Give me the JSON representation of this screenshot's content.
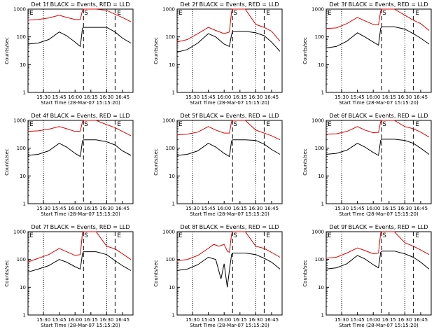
{
  "panel_titles": [
    "Det 1f BLACK = Events, RED = LLD",
    "Det 2f BLACK = Events, RED = LLD",
    "Det 3f BLACK = Events, RED = LLD",
    "Det 4f BLACK = Events, RED = LLD",
    "Det 5f BLACK = Events, RED = LLD",
    "Det 6f BLACK = Events, RED = LLD",
    "Det 7f BLACK = Events, RED = LLD",
    "Det 8f BLACK = Events, RED = LLD",
    "Det 9f BLACK = Events, RED = LLD"
  ],
  "ylabel": "Counts/sec",
  "xlabel": "Start Time (28-Mar-07 15:15:20)",
  "x_ticks": [
    "15:30",
    "15:45",
    "16:00",
    "16:15",
    "16:30",
    "16:45"
  ],
  "y_ticks": [
    "1",
    "10",
    "100",
    "1000"
  ],
  "markers": {
    "start": "S",
    "end": "E"
  },
  "colors": {
    "events": "#000000",
    "lld": "#e00000"
  },
  "chart_data": {
    "type": "line",
    "layout": "3x3 small multiples",
    "xlim": [
      "15:15:20",
      "16:55"
    ],
    "ylim": [
      1,
      1000
    ],
    "yscale": "log",
    "series_names": [
      "Events",
      "LLD"
    ],
    "vertical_lines": {
      "dotted": [
        "15:30",
        "16:30"
      ],
      "dashed": [
        "16:08",
        "16:38"
      ]
    },
    "panels": [
      {
        "detector": "1f",
        "events": [
          [
            "15:15",
            55
          ],
          [
            "15:25",
            60
          ],
          [
            "15:35",
            80
          ],
          [
            "15:45",
            150
          ],
          [
            "15:52",
            110
          ],
          [
            "16:00",
            65
          ],
          [
            "16:05",
            45
          ],
          [
            "16:07",
            200
          ],
          [
            "16:08",
            220
          ],
          [
            "16:20",
            220
          ],
          [
            "16:30",
            220
          ],
          [
            "16:38",
            150
          ],
          [
            "16:45",
            90
          ],
          [
            "16:53",
            60
          ]
        ],
        "lld": [
          [
            "15:15",
            400
          ],
          [
            "15:25",
            420
          ],
          [
            "15:35",
            480
          ],
          [
            "15:45",
            600
          ],
          [
            "15:52",
            500
          ],
          [
            "16:00",
            420
          ],
          [
            "16:05",
            420
          ],
          [
            "16:07",
            900
          ],
          [
            "16:08",
            1000
          ],
          [
            "16:20",
            1000
          ],
          [
            "16:30",
            900
          ],
          [
            "16:38",
            650
          ],
          [
            "16:45",
            500
          ],
          [
            "16:53",
            350
          ]
        ]
      },
      {
        "detector": "2f",
        "events": [
          [
            "15:15",
            28
          ],
          [
            "15:25",
            35
          ],
          [
            "15:35",
            60
          ],
          [
            "15:45",
            130
          ],
          [
            "15:52",
            100
          ],
          [
            "16:00",
            55
          ],
          [
            "16:05",
            45
          ],
          [
            "16:07",
            120
          ],
          [
            "16:08",
            160
          ],
          [
            "16:20",
            160
          ],
          [
            "16:30",
            140
          ],
          [
            "16:38",
            110
          ],
          [
            "16:45",
            65
          ],
          [
            "16:53",
            30
          ]
        ],
        "lld": [
          [
            "15:15",
            65
          ],
          [
            "15:25",
            80
          ],
          [
            "15:35",
            130
          ],
          [
            "15:45",
            220
          ],
          [
            "15:52",
            170
          ],
          [
            "16:00",
            130
          ],
          [
            "16:05",
            150
          ],
          [
            "16:07",
            800
          ],
          [
            "16:08",
            1000
          ],
          [
            "16:20",
            1000
          ],
          [
            "16:30",
            280
          ],
          [
            "16:38",
            220
          ],
          [
            "16:45",
            160
          ],
          [
            "16:53",
            70
          ]
        ]
      },
      {
        "detector": "3f",
        "events": [
          [
            "15:15",
            40
          ],
          [
            "15:25",
            45
          ],
          [
            "15:35",
            70
          ],
          [
            "15:45",
            140
          ],
          [
            "15:52",
            100
          ],
          [
            "16:00",
            65
          ],
          [
            "16:05",
            50
          ],
          [
            "16:07",
            200
          ],
          [
            "16:08",
            230
          ],
          [
            "16:20",
            230
          ],
          [
            "16:30",
            190
          ],
          [
            "16:38",
            130
          ],
          [
            "16:45",
            90
          ],
          [
            "16:53",
            55
          ]
        ],
        "lld": [
          [
            "15:15",
            200
          ],
          [
            "15:25",
            210
          ],
          [
            "15:35",
            300
          ],
          [
            "15:45",
            500
          ],
          [
            "15:52",
            380
          ],
          [
            "16:00",
            280
          ],
          [
            "16:05",
            270
          ],
          [
            "16:07",
            850
          ],
          [
            "16:08",
            1000
          ],
          [
            "16:20",
            1000
          ],
          [
            "16:30",
            600
          ],
          [
            "16:38",
            400
          ],
          [
            "16:45",
            300
          ],
          [
            "16:53",
            170
          ]
        ]
      },
      {
        "detector": "4f",
        "events": [
          [
            "15:15",
            55
          ],
          [
            "15:25",
            60
          ],
          [
            "15:35",
            80
          ],
          [
            "15:45",
            150
          ],
          [
            "15:52",
            110
          ],
          [
            "16:00",
            65
          ],
          [
            "16:05",
            50
          ],
          [
            "16:07",
            180
          ],
          [
            "16:08",
            200
          ],
          [
            "16:20",
            200
          ],
          [
            "16:30",
            170
          ],
          [
            "16:38",
            130
          ],
          [
            "16:45",
            80
          ],
          [
            "16:53",
            55
          ]
        ],
        "lld": [
          [
            "15:15",
            400
          ],
          [
            "15:25",
            420
          ],
          [
            "15:35",
            480
          ],
          [
            "15:45",
            600
          ],
          [
            "15:52",
            500
          ],
          [
            "16:00",
            400
          ],
          [
            "16:05",
            410
          ],
          [
            "16:07",
            900
          ],
          [
            "16:08",
            1000
          ],
          [
            "16:20",
            1000
          ],
          [
            "16:30",
            700
          ],
          [
            "16:38",
            550
          ],
          [
            "16:45",
            400
          ],
          [
            "16:53",
            280
          ]
        ]
      },
      {
        "detector": "5f",
        "events": [
          [
            "15:15",
            55
          ],
          [
            "15:25",
            60
          ],
          [
            "15:35",
            80
          ],
          [
            "15:45",
            150
          ],
          [
            "15:52",
            110
          ],
          [
            "16:00",
            65
          ],
          [
            "16:05",
            50
          ],
          [
            "16:07",
            180
          ],
          [
            "16:08",
            200
          ],
          [
            "16:20",
            200
          ],
          [
            "16:30",
            190
          ],
          [
            "16:38",
            140
          ],
          [
            "16:45",
            90
          ],
          [
            "16:53",
            60
          ]
        ],
        "lld": [
          [
            "15:15",
            300
          ],
          [
            "15:25",
            320
          ],
          [
            "15:35",
            380
          ],
          [
            "15:45",
            600
          ],
          [
            "15:52",
            450
          ],
          [
            "16:00",
            350
          ],
          [
            "16:05",
            350
          ],
          [
            "16:07",
            900
          ],
          [
            "16:08",
            1000
          ],
          [
            "16:20",
            1000
          ],
          [
            "16:30",
            450
          ],
          [
            "16:38",
            350
          ],
          [
            "16:45",
            280
          ],
          [
            "16:53",
            200
          ]
        ]
      },
      {
        "detector": "6f",
        "events": [
          [
            "15:15",
            60
          ],
          [
            "15:25",
            65
          ],
          [
            "15:35",
            85
          ],
          [
            "15:45",
            150
          ],
          [
            "15:52",
            110
          ],
          [
            "16:00",
            70
          ],
          [
            "16:05",
            55
          ],
          [
            "16:07",
            190
          ],
          [
            "16:08",
            210
          ],
          [
            "16:20",
            210
          ],
          [
            "16:30",
            190
          ],
          [
            "16:38",
            150
          ],
          [
            "16:45",
            100
          ],
          [
            "16:53",
            60
          ]
        ],
        "lld": [
          [
            "15:15",
            320
          ],
          [
            "15:25",
            330
          ],
          [
            "15:35",
            400
          ],
          [
            "15:45",
            600
          ],
          [
            "15:52",
            450
          ],
          [
            "16:00",
            360
          ],
          [
            "16:05",
            370
          ],
          [
            "16:07",
            900
          ],
          [
            "16:08",
            1000
          ],
          [
            "16:20",
            1000
          ],
          [
            "16:30",
            600
          ],
          [
            "16:38",
            500
          ],
          [
            "16:45",
            380
          ],
          [
            "16:53",
            250
          ]
        ]
      },
      {
        "detector": "7f",
        "events": [
          [
            "15:15",
            35
          ],
          [
            "15:25",
            45
          ],
          [
            "15:35",
            60
          ],
          [
            "15:45",
            100
          ],
          [
            "15:52",
            80
          ],
          [
            "16:00",
            55
          ],
          [
            "16:05",
            45
          ],
          [
            "16:07",
            160
          ],
          [
            "16:08",
            190
          ],
          [
            "16:20",
            190
          ],
          [
            "16:30",
            150
          ],
          [
            "16:38",
            90
          ],
          [
            "16:45",
            60
          ],
          [
            "16:53",
            40
          ]
        ],
        "lld": [
          [
            "15:15",
            80
          ],
          [
            "15:25",
            110
          ],
          [
            "15:35",
            150
          ],
          [
            "15:45",
            250
          ],
          [
            "15:52",
            190
          ],
          [
            "16:00",
            140
          ],
          [
            "16:05",
            150
          ],
          [
            "16:07",
            900
          ],
          [
            "16:08",
            1000
          ],
          [
            "16:20",
            1000
          ],
          [
            "16:30",
            300
          ],
          [
            "16:38",
            240
          ],
          [
            "16:45",
            160
          ],
          [
            "16:53",
            100
          ]
        ]
      },
      {
        "detector": "8f",
        "events": [
          [
            "15:15",
            40
          ],
          [
            "15:25",
            45
          ],
          [
            "15:35",
            65
          ],
          [
            "15:45",
            120
          ],
          [
            "15:52",
            100
          ],
          [
            "15:57",
            20
          ],
          [
            "16:00",
            70
          ],
          [
            "16:03",
            10
          ],
          [
            "16:05",
            40
          ],
          [
            "16:07",
            150
          ],
          [
            "16:08",
            170
          ],
          [
            "16:20",
            170
          ],
          [
            "16:30",
            150
          ],
          [
            "16:38",
            110
          ],
          [
            "16:45",
            80
          ],
          [
            "16:53",
            45
          ]
        ],
        "lld": [
          [
            "15:15",
            90
          ],
          [
            "15:25",
            100
          ],
          [
            "15:35",
            140
          ],
          [
            "15:45",
            250
          ],
          [
            "15:50",
            350
          ],
          [
            "15:55",
            300
          ],
          [
            "16:00",
            350
          ],
          [
            "16:03",
            200
          ],
          [
            "16:05",
            180
          ],
          [
            "16:07",
            800
          ],
          [
            "16:08",
            1000
          ],
          [
            "16:20",
            1000
          ],
          [
            "16:30",
            300
          ],
          [
            "16:38",
            250
          ],
          [
            "16:45",
            180
          ],
          [
            "16:53",
            120
          ]
        ]
      },
      {
        "detector": "9f",
        "events": [
          [
            "15:15",
            45
          ],
          [
            "15:25",
            50
          ],
          [
            "15:35",
            70
          ],
          [
            "15:45",
            140
          ],
          [
            "15:52",
            105
          ],
          [
            "16:00",
            65
          ],
          [
            "16:05",
            50
          ],
          [
            "16:07",
            180
          ],
          [
            "16:08",
            200
          ],
          [
            "16:20",
            200
          ],
          [
            "16:30",
            160
          ],
          [
            "16:38",
            120
          ],
          [
            "16:45",
            80
          ],
          [
            "16:53",
            45
          ]
        ],
        "lld": [
          [
            "15:15",
            110
          ],
          [
            "15:25",
            120
          ],
          [
            "15:35",
            170
          ],
          [
            "15:45",
            260
          ],
          [
            "15:52",
            210
          ],
          [
            "16:00",
            160
          ],
          [
            "16:05",
            170
          ],
          [
            "16:07",
            900
          ],
          [
            "16:08",
            1000
          ],
          [
            "16:20",
            1000
          ],
          [
            "16:30",
            400
          ],
          [
            "16:38",
            300
          ],
          [
            "16:45",
            220
          ],
          [
            "16:53",
            150
          ]
        ]
      }
    ]
  }
}
